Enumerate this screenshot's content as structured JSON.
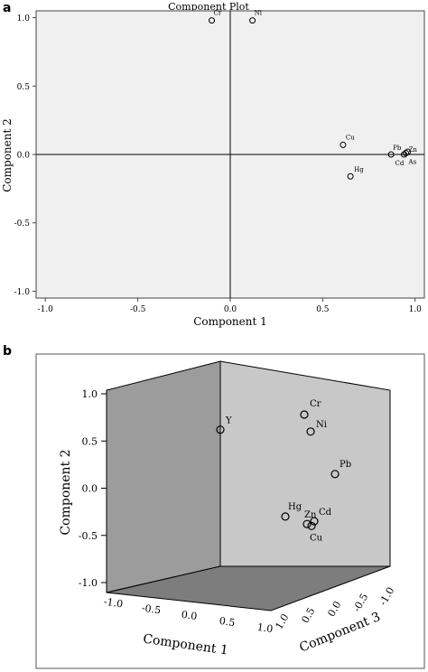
{
  "panel_labels": {
    "a": "a",
    "b": "b"
  },
  "chart_data": [
    {
      "type": "scatter",
      "title": "Component Plot",
      "xlabel": "Component 1",
      "ylabel": "Component 2",
      "xlim": [
        -1.05,
        1.05
      ],
      "ylim": [
        -1.05,
        1.05
      ],
      "x_ticks": [
        "-1.0",
        "-0.5",
        "0.0",
        "0.5",
        "1.0"
      ],
      "y_ticks": [
        "1.0",
        "0.5",
        "0.0",
        "-0.5",
        "-1.0"
      ],
      "grid": false,
      "points": [
        {
          "label": "Cr",
          "x": -0.1,
          "y": 0.98
        },
        {
          "label": "Ni",
          "x": 0.12,
          "y": 0.98
        },
        {
          "label": "Cu",
          "x": 0.61,
          "y": 0.07
        },
        {
          "label": "Hg",
          "x": 0.65,
          "y": -0.16
        },
        {
          "label": "Pb",
          "x": 0.87,
          "y": 0.0
        },
        {
          "label": "Cd",
          "x": 0.94,
          "y": 0.0
        },
        {
          "label": "As",
          "x": 0.95,
          "y": 0.01
        },
        {
          "label": "Zn",
          "x": 0.96,
          "y": 0.02
        }
      ]
    },
    {
      "type": "scatter",
      "title": "",
      "xlabel": "Component 1",
      "ylabel": "Component 2",
      "zlabel": "Component 3",
      "axis_range": [
        -1.0,
        1.0
      ],
      "y_ticks": [
        "1.0",
        "0.5",
        "0.0",
        "-0.5",
        "-1.0"
      ],
      "x_ticks": [
        "-1.0",
        "-0.5",
        "0.0",
        "0.5",
        "1.0"
      ],
      "z_ticks": [
        "1.0",
        "0.5",
        "0.0",
        "-0.5",
        "-1.0"
      ],
      "points": [
        {
          "label": "Y",
          "component_2": 0.62
        },
        {
          "label": "Cr",
          "component_2": 0.78
        },
        {
          "label": "Ni",
          "component_2": 0.6
        },
        {
          "label": "Pb",
          "component_2": 0.15
        },
        {
          "label": "Hg",
          "component_2": -0.3
        },
        {
          "label": "Zn",
          "component_2": -0.38
        },
        {
          "label": "Cd",
          "component_2": -0.35
        },
        {
          "label": "Cu",
          "component_2": -0.4
        }
      ]
    }
  ]
}
